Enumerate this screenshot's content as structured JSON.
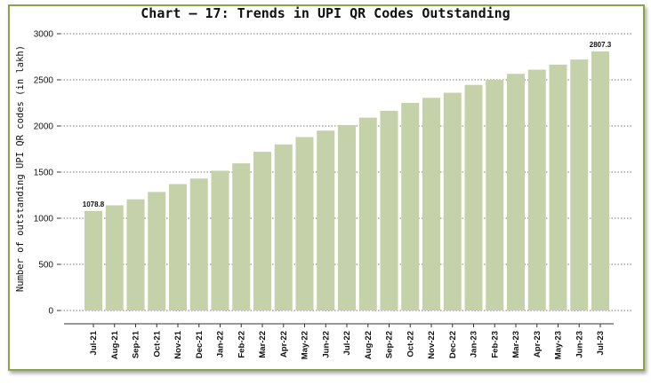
{
  "chart_data": {
    "type": "bar",
    "title": "Chart – 17: Trends in UPI QR Codes Outstanding",
    "ylabel": "Number of outstanding UPI QR codes (in lakh)",
    "xlabel": "",
    "ylim": [
      0,
      3000
    ],
    "yticks": [
      0,
      500,
      1000,
      1500,
      2000,
      2500,
      3000
    ],
    "grid": true,
    "bar_color": "#c5d1a9",
    "categories": [
      "Jul-21",
      "Aug-21",
      "Sep-21",
      "Oct-21",
      "Nov-21",
      "Dec-21",
      "Jan-22",
      "Feb-22",
      "Mar-22",
      "Apr-22",
      "May-22",
      "Jun-22",
      "Jul-22",
      "Aug-22",
      "Sep-22",
      "Oct-22",
      "Nov-22",
      "Dec-22",
      "Jan-23",
      "Feb-23",
      "Mar-23",
      "Apr-23",
      "May-23",
      "Jun-23",
      "Jul-23"
    ],
    "values": [
      1078.8,
      1140,
      1205,
      1285,
      1370,
      1430,
      1515,
      1595,
      1720,
      1800,
      1880,
      1950,
      2010,
      2090,
      2165,
      2250,
      2305,
      2360,
      2445,
      2500,
      2565,
      2610,
      2665,
      2720,
      2807.3
    ],
    "data_labels": [
      {
        "index": 0,
        "text": "1078.8"
      },
      {
        "index": 24,
        "text": "2807.3"
      }
    ]
  }
}
